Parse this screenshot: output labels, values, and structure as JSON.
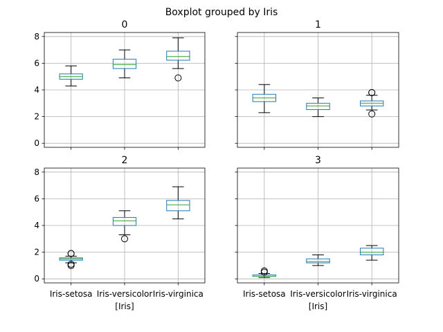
{
  "chart_data": {
    "type": "boxplot",
    "title": "Boxplot grouped by Iris",
    "xlabel": "[Iris]",
    "categories": [
      "Iris-setosa",
      "Iris-versicolor",
      "Iris-virginica"
    ],
    "ylim": [
      -0.3,
      8.3
    ],
    "yticks": [
      0,
      2,
      4,
      6,
      8
    ],
    "grid": true,
    "colors": {
      "box": "#1f77b4",
      "median": "#2ca02c",
      "whisker": "#000000",
      "grid": "#b0b0b0"
    },
    "panels": [
      {
        "title": "0",
        "boxes": [
          {
            "category": "Iris-setosa",
            "whislo": 4.3,
            "q1": 4.8,
            "med": 5.0,
            "q3": 5.2,
            "whishi": 5.8,
            "fliers": []
          },
          {
            "category": "Iris-versicolor",
            "whislo": 4.9,
            "q1": 5.6,
            "med": 5.9,
            "q3": 6.3,
            "whishi": 7.0,
            "fliers": []
          },
          {
            "category": "Iris-virginica",
            "whislo": 5.6,
            "q1": 6.225,
            "med": 6.5,
            "q3": 6.9,
            "whishi": 7.9,
            "fliers": [
              4.9
            ]
          }
        ]
      },
      {
        "title": "1",
        "boxes": [
          {
            "category": "Iris-setosa",
            "whislo": 2.3,
            "q1": 3.125,
            "med": 3.4,
            "q3": 3.675,
            "whishi": 4.4,
            "fliers": []
          },
          {
            "category": "Iris-versicolor",
            "whislo": 2.0,
            "q1": 2.525,
            "med": 2.8,
            "q3": 3.0,
            "whishi": 3.4,
            "fliers": []
          },
          {
            "category": "Iris-virginica",
            "whislo": 2.5,
            "q1": 2.8,
            "med": 3.0,
            "q3": 3.175,
            "whishi": 3.6,
            "fliers": [
              3.8,
              3.8,
              2.2
            ]
          }
        ]
      },
      {
        "title": "2",
        "boxes": [
          {
            "category": "Iris-setosa",
            "whislo": 1.2,
            "q1": 1.4,
            "med": 1.5,
            "q3": 1.575,
            "whishi": 1.7,
            "fliers": [
              1.0,
              1.1,
              1.9,
              1.9
            ]
          },
          {
            "category": "Iris-versicolor",
            "whislo": 3.3,
            "q1": 4.0,
            "med": 4.35,
            "q3": 4.6,
            "whishi": 5.1,
            "fliers": [
              3.0
            ]
          },
          {
            "category": "Iris-virginica",
            "whislo": 4.5,
            "q1": 5.1,
            "med": 5.55,
            "q3": 5.875,
            "whishi": 6.9,
            "fliers": []
          }
        ]
      },
      {
        "title": "3",
        "boxes": [
          {
            "category": "Iris-setosa",
            "whislo": 0.1,
            "q1": 0.2,
            "med": 0.2,
            "q3": 0.3,
            "whishi": 0.4,
            "fliers": [
              0.5,
              0.6
            ]
          },
          {
            "category": "Iris-versicolor",
            "whislo": 1.0,
            "q1": 1.2,
            "med": 1.3,
            "q3": 1.5,
            "whishi": 1.8,
            "fliers": []
          },
          {
            "category": "Iris-virginica",
            "whislo": 1.4,
            "q1": 1.8,
            "med": 2.0,
            "q3": 2.3,
            "whishi": 2.5,
            "fliers": []
          }
        ]
      }
    ]
  }
}
